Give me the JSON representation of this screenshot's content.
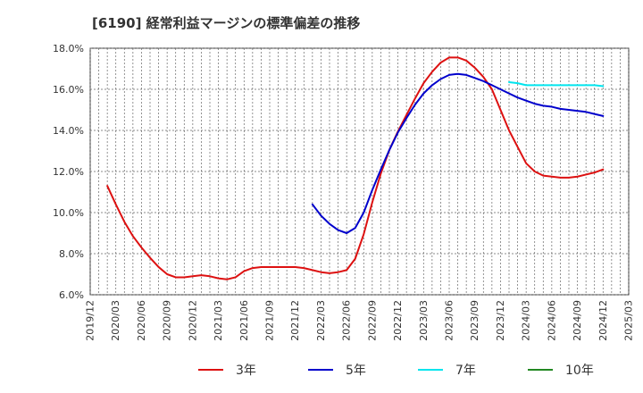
{
  "chart_data": {
    "type": "line",
    "title": "[6190]  経常利益マージンの標準偏差の推移",
    "xlabel": "",
    "ylabel": "",
    "ylim": [
      6.0,
      18.0
    ],
    "y_ticks": [
      "6.0%",
      "8.0%",
      "10.0%",
      "12.0%",
      "14.0%",
      "16.0%",
      "18.0%"
    ],
    "x_ticks": [
      "2019/12",
      "2020/03",
      "2020/06",
      "2020/09",
      "2020/12",
      "2021/03",
      "2021/06",
      "2021/09",
      "2021/12",
      "2022/03",
      "2022/06",
      "2022/09",
      "2022/12",
      "2023/03",
      "2023/06",
      "2023/09",
      "2023/12",
      "2024/03",
      "2024/06",
      "2024/09",
      "2024/12",
      "2025/03"
    ],
    "grid": true,
    "legend_position": "bottom",
    "series": [
      {
        "name": "3年",
        "color": "#dd1111",
        "x": [
          "2020/02",
          "2020/03",
          "2020/04",
          "2020/05",
          "2020/06",
          "2020/07",
          "2020/08",
          "2020/09",
          "2020/10",
          "2020/11",
          "2020/12",
          "2021/01",
          "2021/02",
          "2021/03",
          "2021/04",
          "2021/05",
          "2021/06",
          "2021/07",
          "2021/08",
          "2021/09",
          "2021/10",
          "2021/11",
          "2021/12",
          "2022/01",
          "2022/02",
          "2022/03",
          "2022/04",
          "2022/05",
          "2022/06",
          "2022/07",
          "2022/08",
          "2022/09",
          "2022/10",
          "2022/11",
          "2022/12",
          "2023/01",
          "2023/02",
          "2023/03",
          "2023/04",
          "2023/05",
          "2023/06",
          "2023/07",
          "2023/08",
          "2023/09",
          "2023/10",
          "2023/11",
          "2023/12",
          "2024/01",
          "2024/02",
          "2024/03",
          "2024/04",
          "2024/05",
          "2024/06",
          "2024/07",
          "2024/08",
          "2024/09",
          "2024/10",
          "2024/11",
          "2024/12"
        ],
        "values": [
          11.3,
          10.4,
          9.55,
          8.85,
          8.3,
          7.8,
          7.35,
          7.0,
          6.85,
          6.85,
          6.9,
          6.95,
          6.9,
          6.8,
          6.75,
          6.85,
          7.15,
          7.3,
          7.35,
          7.35,
          7.35,
          7.35,
          7.35,
          7.3,
          7.2,
          7.1,
          7.05,
          7.1,
          7.2,
          7.75,
          8.95,
          10.5,
          11.9,
          13.05,
          13.95,
          14.75,
          15.55,
          16.3,
          16.85,
          17.3,
          17.55,
          17.55,
          17.4,
          17.05,
          16.6,
          16.0,
          15.0,
          14.0,
          13.2,
          12.4,
          12.0,
          11.8,
          11.75,
          11.7,
          11.7,
          11.75,
          11.85,
          11.95,
          12.1
        ]
      },
      {
        "name": "5年",
        "color": "#0000cc",
        "x": [
          "2022/02",
          "2022/03",
          "2022/04",
          "2022/05",
          "2022/06",
          "2022/07",
          "2022/08",
          "2022/09",
          "2022/10",
          "2022/11",
          "2022/12",
          "2023/01",
          "2023/02",
          "2023/03",
          "2023/04",
          "2023/05",
          "2023/06",
          "2023/07",
          "2023/08",
          "2023/09",
          "2023/10",
          "2023/11",
          "2023/12",
          "2024/01",
          "2024/02",
          "2024/03",
          "2024/04",
          "2024/05",
          "2024/06",
          "2024/07",
          "2024/08",
          "2024/09",
          "2024/10",
          "2024/11",
          "2024/12"
        ],
        "values": [
          10.4,
          9.85,
          9.45,
          9.15,
          9.0,
          9.25,
          10.0,
          11.1,
          12.1,
          13.05,
          13.9,
          14.6,
          15.25,
          15.8,
          16.2,
          16.5,
          16.7,
          16.75,
          16.7,
          16.55,
          16.4,
          16.2,
          16.0,
          15.8,
          15.6,
          15.45,
          15.3,
          15.2,
          15.15,
          15.05,
          15.0,
          14.95,
          14.9,
          14.8,
          14.7
        ]
      },
      {
        "name": "7年",
        "color": "#00e5ee",
        "x": [
          "2024/01",
          "2024/02",
          "2024/03",
          "2024/04",
          "2024/05",
          "2024/06",
          "2024/07",
          "2024/08",
          "2024/09",
          "2024/10",
          "2024/11",
          "2024/12"
        ],
        "values": [
          16.35,
          16.3,
          16.2,
          16.2,
          16.2,
          16.2,
          16.2,
          16.2,
          16.2,
          16.2,
          16.2,
          16.15
        ]
      },
      {
        "name": "10年",
        "color": "#228822",
        "x": [],
        "values": []
      }
    ]
  }
}
